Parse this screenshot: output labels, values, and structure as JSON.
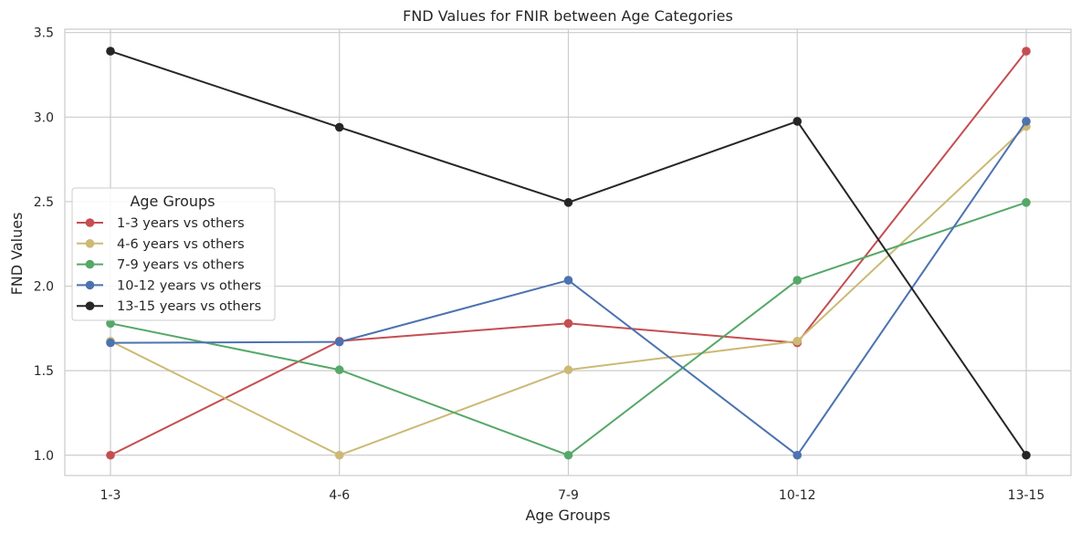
{
  "chart_data": {
    "type": "line",
    "title": "FND Values for FNIR between Age Categories",
    "xlabel": "Age Groups",
    "ylabel": "FND Values",
    "categories": [
      "1-3",
      "4-6",
      "7-9",
      "10-12",
      "13-15"
    ],
    "yticks": [
      "1.0",
      "1.5",
      "2.0",
      "2.5",
      "3.0",
      "3.5"
    ],
    "ylim": [
      0.88,
      3.52
    ],
    "grid": true,
    "legend": {
      "title": "Age Groups",
      "placement": "center-left"
    },
    "series": [
      {
        "name": "1-3 years vs others",
        "color": "#c44e52",
        "values": [
          1.0,
          1.675,
          1.78,
          1.665,
          3.39
        ]
      },
      {
        "name": "4-6 years vs others",
        "color": "#ccb974",
        "values": [
          1.675,
          1.0,
          1.505,
          1.675,
          2.945
        ]
      },
      {
        "name": "7-9 years vs others",
        "color": "#55a868",
        "values": [
          1.78,
          1.505,
          1.0,
          2.035,
          2.495
        ]
      },
      {
        "name": "10-12 years vs others",
        "color": "#4c72b0",
        "values": [
          1.665,
          1.67,
          2.035,
          1.0,
          2.975
        ]
      },
      {
        "name": "13-15 years vs others",
        "color": "#262626",
        "values": [
          3.39,
          2.94,
          2.495,
          2.975,
          1.0
        ]
      }
    ]
  }
}
